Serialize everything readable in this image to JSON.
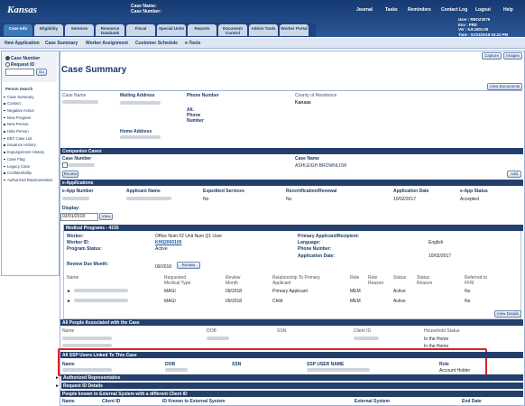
{
  "header": {
    "logo": "Kansas",
    "case_name_label": "Case Name:",
    "case_number_label": "Case Number:",
    "top_links": [
      "Journal",
      "Tasks",
      "Reminders",
      "Contact Log",
      "Logout",
      "Help"
    ],
    "user_info": [
      "User : RBOZ3079",
      "Env : PRD",
      "Ver : 5.8.1801.05",
      "Time : 01/23/2018 03:22 PM"
    ]
  },
  "tabs": [
    "Case Info",
    "Eligibility",
    "Services",
    "Resource Databank",
    "Fiscal",
    "Special Units",
    "Reports",
    "Document Control",
    "Admin Tools",
    "Worker Portal"
  ],
  "subnav": [
    "New Application",
    "Case Summary",
    "Worker Assignment",
    "Customer Schedule",
    "e-Tools"
  ],
  "sidebar": {
    "radios": [
      "Case Number",
      "Request ID"
    ],
    "go": "Go",
    "person_search": "Person Search",
    "links": [
      "Case Summary",
      "Contact",
      "Negative Action",
      "New Program",
      "New Person",
      "Hide Person",
      "EBT Case List",
      "Issuance History",
      "Expungement History",
      "Case Flag",
      "Legacy Case",
      "Confidentiality",
      "Authorized Representative"
    ]
  },
  "page": {
    "title": "Case Summary",
    "buttons": [
      "Capture",
      "Images"
    ],
    "view_documents": "View Documents"
  },
  "case_info": {
    "case_name": "Case Name",
    "mailing_address": "Mailing Address",
    "phone_number": "Phone Number",
    "alt_phone": "Alt. Phone Number",
    "home_address": "Home Address",
    "county_label": "County of Residence",
    "county": "Kansas"
  },
  "companion": {
    "title": "Companion Cases",
    "case_number": "Case Number",
    "case_name": "Case Name",
    "name": "ASHLEIGH BROWNLOW",
    "review": "Review",
    "add": "Add"
  },
  "eapps": {
    "title": "e-Applications",
    "columns": [
      "e-App Number",
      "Applicant Name",
      "Expedited Services",
      "Recertification/Renewal",
      "Application Date",
      "e-App Status"
    ],
    "row": [
      "No",
      "No",
      "10/02/2017",
      "Accepted"
    ]
  },
  "display": {
    "label": "Display:",
    "date": "03/01/2018",
    "view": "View"
  },
  "medical": {
    "title": "Medical Programs - 4155",
    "worker_label": "Worker:",
    "worker": "Office Num 02 Unit Num Q1 User",
    "worker_id_label": "Worker ID:",
    "worker_id": "KH02060100",
    "status_label": "Program Status:",
    "status": "Active",
    "primary_label": "Primary Applicant/Recipient:",
    "language_label": "Language:",
    "language": "English",
    "phone_label": "Phone Number:",
    "app_date_label": "Application Date:",
    "app_date": "10/02/2017",
    "review_due_label": "Review Due Month:",
    "review_due": "09/2018",
    "review": "Review",
    "columns": [
      "Name",
      "Requested Medical Type",
      "Review Month",
      "Relationship To Primary Applicant",
      "Role",
      "Role Reason",
      "Status",
      "Status Reason",
      "Referred to FFM"
    ],
    "rows": [
      [
        "MAGI",
        "09/2018",
        "Primary Applicant",
        "MEM",
        "Active",
        "No"
      ],
      [
        "MAGI",
        "09/2018",
        "Child",
        "MEM",
        "Active",
        "No"
      ]
    ],
    "view_details": "View Details"
  },
  "people": {
    "title": "All People Associated with the Case",
    "columns": [
      "Name",
      "DOB",
      "SSN",
      "Client ID",
      "Household Status"
    ],
    "statuses": [
      "In the Home",
      "In the Home"
    ]
  },
  "ssp": {
    "title": "All SSP Users Linked To This Case",
    "columns": [
      "Name",
      "DOB",
      "SSN",
      "SSP USER NAME",
      "Role"
    ],
    "role": "Account Holder"
  },
  "auth_rep": "Authorized Representative",
  "request_id": "Request ID Details",
  "external": {
    "title": "People known to External System with a different Client ID",
    "columns": [
      "Name",
      "Client ID",
      "ID Known to External System",
      "External System",
      "End Date"
    ]
  }
}
